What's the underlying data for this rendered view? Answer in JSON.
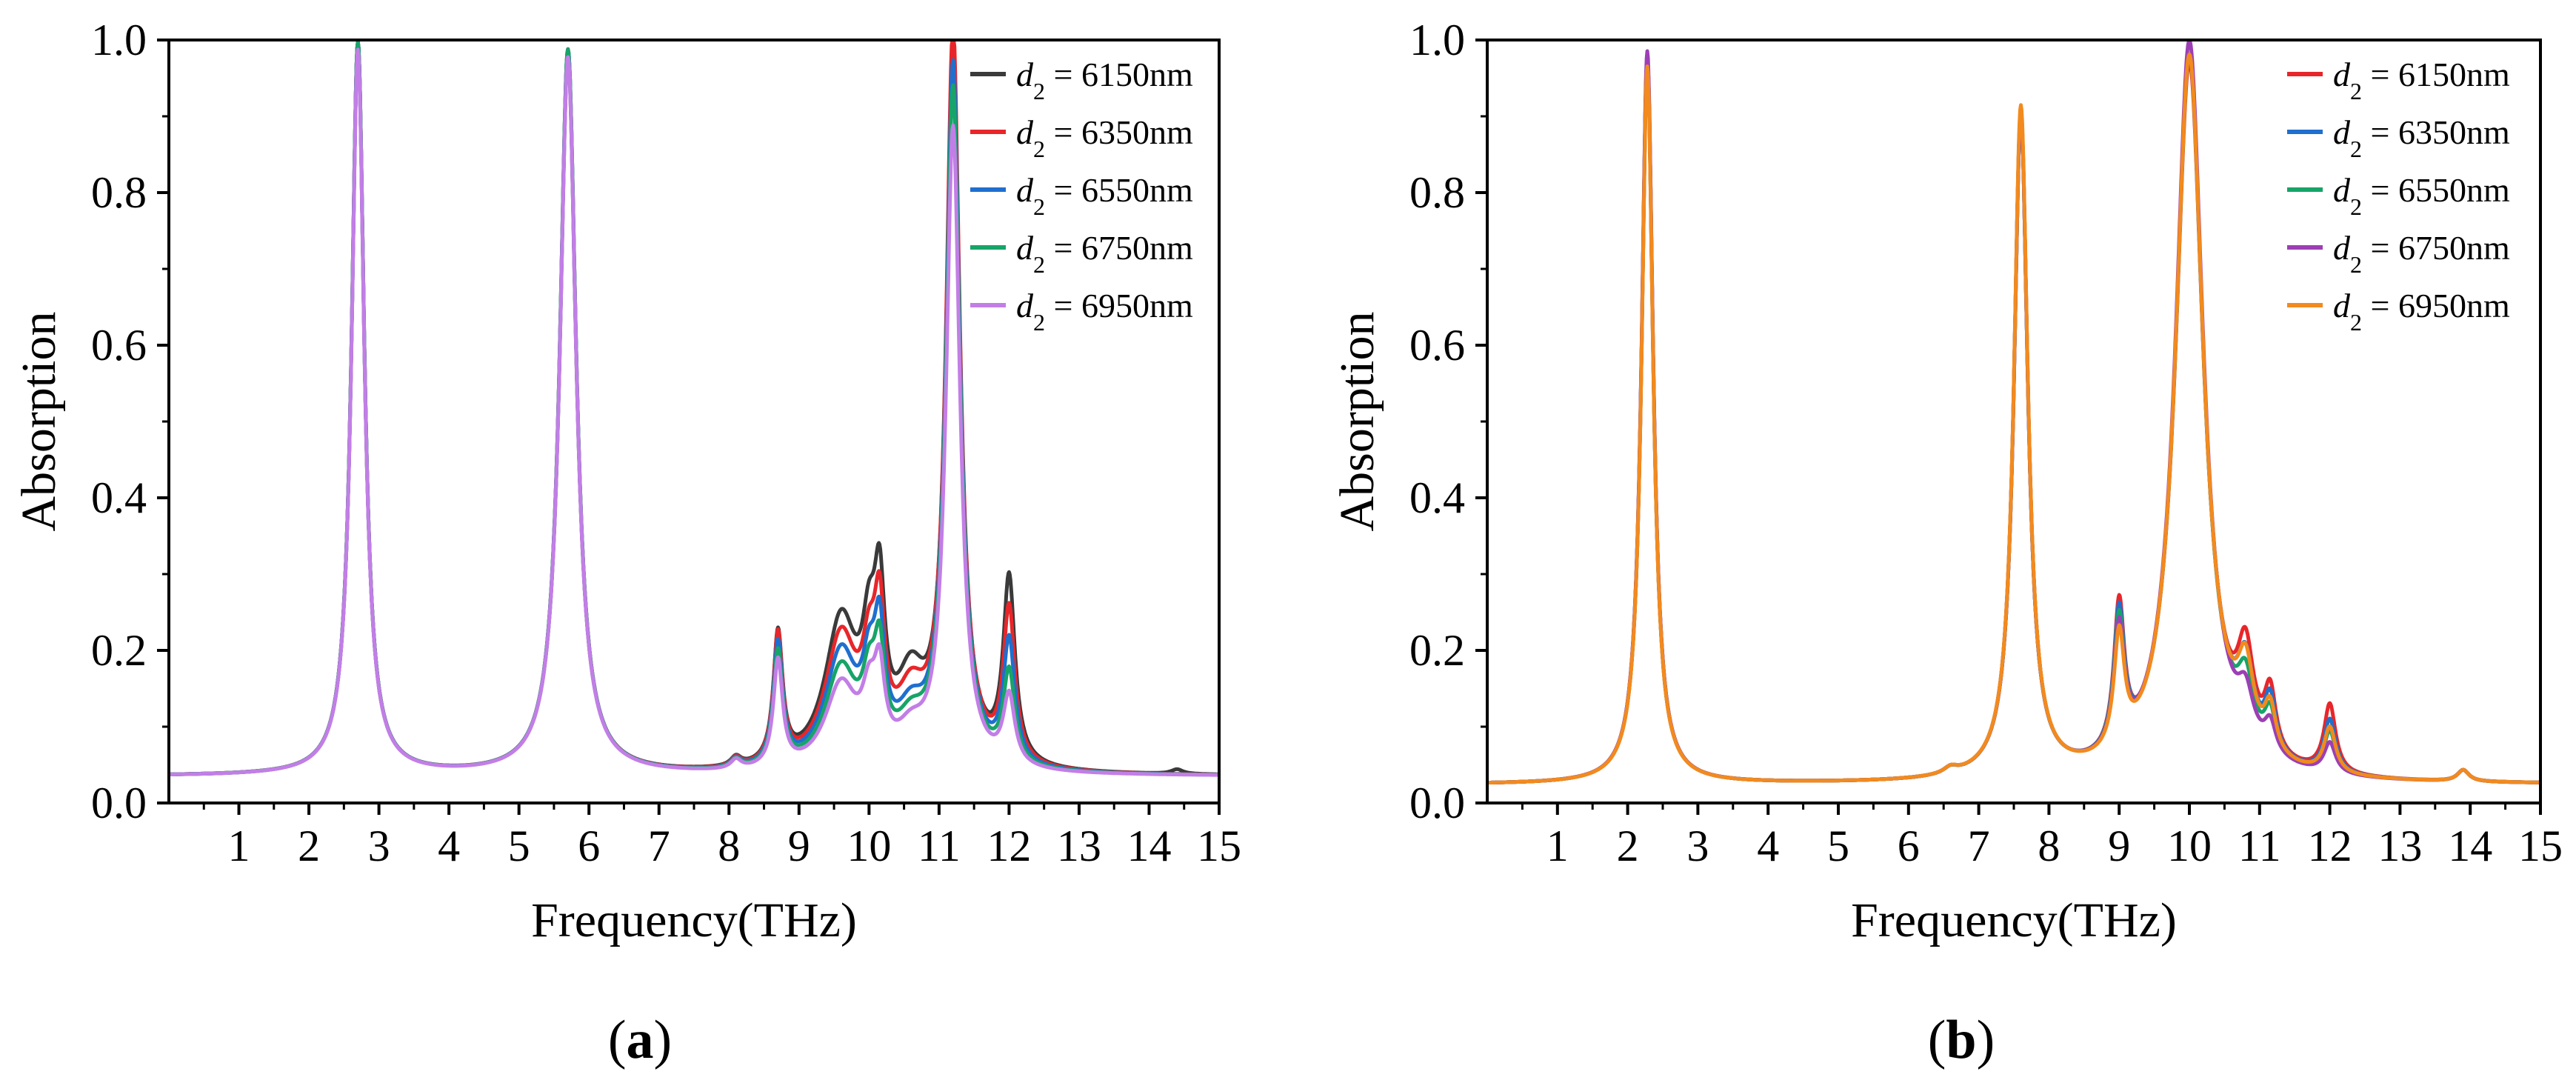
{
  "figure": {
    "panels": [
      "a",
      "b"
    ]
  },
  "colors": {
    "gray": "#3a3a3a",
    "red": "#e8262a",
    "blue": "#1f6fcf",
    "green": "#17a468",
    "violet": "#c27ee6",
    "purple": "#9c3fb4",
    "orange": "#f28a1e"
  },
  "chart_data": [
    {
      "id": "a",
      "type": "line",
      "panel_label": "a",
      "xlabel": "Frequency(THz)",
      "ylabel": "Absorption",
      "xlim": [
        0,
        15
      ],
      "ylim": [
        0,
        1.0
      ],
      "xticks": [
        1,
        2,
        3,
        4,
        5,
        6,
        7,
        8,
        9,
        10,
        11,
        12,
        13,
        14,
        15
      ],
      "xtick_labels": [
        "1",
        "2",
        "3",
        "4",
        "5",
        "6",
        "7",
        "8",
        "9",
        "10",
        "11",
        "12",
        "13",
        "14",
        "15"
      ],
      "yticks": [
        0.0,
        0.2,
        0.4,
        0.6,
        0.8,
        1.0
      ],
      "ytick_labels": [
        "0.0",
        "0.2",
        "0.4",
        "0.6",
        "0.8",
        "1.0"
      ],
      "legend_position": "top-right",
      "legend_symbol": "d",
      "legend_subscript": "2",
      "baseline": 0.035,
      "series": [
        {
          "name": "6150nm",
          "label": " = 6150nm",
          "color": "#3a3a3a",
          "peaks": [
            [
              2.7,
              0.96,
              0.11
            ],
            [
              5.7,
              0.94,
              0.14
            ],
            [
              8.1,
              0.012,
              0.09
            ],
            [
              8.7,
              0.17,
              0.08
            ],
            [
              9.6,
              0.19,
              0.28
            ],
            [
              10.0,
              0.12,
              0.12
            ],
            [
              10.15,
              0.18,
              0.09
            ],
            [
              10.6,
              0.1,
              0.25
            ],
            [
              11.2,
              0.93,
              0.12
            ],
            [
              12.0,
              0.24,
              0.1
            ],
            [
              14.4,
              0.006,
              0.1
            ]
          ]
        },
        {
          "name": "6350nm",
          "label": " = 6350nm",
          "color": "#e8262a",
          "peaks": [
            [
              2.7,
              0.96,
              0.11
            ],
            [
              5.7,
              0.95,
              0.14
            ],
            [
              8.1,
              0.012,
              0.09
            ],
            [
              8.7,
              0.17,
              0.08
            ],
            [
              9.6,
              0.17,
              0.28
            ],
            [
              10.0,
              0.1,
              0.12
            ],
            [
              10.15,
              0.16,
              0.09
            ],
            [
              10.6,
              0.08,
              0.25
            ],
            [
              11.2,
              0.96,
              0.12
            ],
            [
              12.0,
              0.2,
              0.1
            ]
          ]
        },
        {
          "name": "6550nm",
          "label": " = 6550nm",
          "color": "#1f6fcf",
          "peaks": [
            [
              2.7,
              0.96,
              0.11
            ],
            [
              5.7,
              0.95,
              0.14
            ],
            [
              8.1,
              0.012,
              0.09
            ],
            [
              8.7,
              0.16,
              0.08
            ],
            [
              9.6,
              0.15,
              0.28
            ],
            [
              10.0,
              0.09,
              0.12
            ],
            [
              10.15,
              0.14,
              0.09
            ],
            [
              10.6,
              0.06,
              0.25
            ],
            [
              11.2,
              0.92,
              0.12
            ],
            [
              12.0,
              0.16,
              0.1
            ]
          ]
        },
        {
          "name": "6750nm",
          "label": " = 6750nm",
          "color": "#17a468",
          "peaks": [
            [
              2.7,
              0.96,
              0.11
            ],
            [
              5.7,
              0.95,
              0.14
            ],
            [
              8.1,
              0.012,
              0.09
            ],
            [
              8.7,
              0.15,
              0.08
            ],
            [
              9.6,
              0.13,
              0.28
            ],
            [
              10.0,
              0.08,
              0.12
            ],
            [
              10.15,
              0.12,
              0.09
            ],
            [
              10.6,
              0.05,
              0.25
            ],
            [
              11.2,
              0.89,
              0.12
            ],
            [
              12.0,
              0.12,
              0.1
            ]
          ]
        },
        {
          "name": "6950nm",
          "label": " = 6950nm",
          "color": "#c27ee6",
          "peaks": [
            [
              2.7,
              0.95,
              0.11
            ],
            [
              5.7,
              0.94,
              0.14
            ],
            [
              8.1,
              0.012,
              0.09
            ],
            [
              8.7,
              0.14,
              0.08
            ],
            [
              9.6,
              0.11,
              0.28
            ],
            [
              10.0,
              0.07,
              0.12
            ],
            [
              10.15,
              0.1,
              0.09
            ],
            [
              10.6,
              0.04,
              0.25
            ],
            [
              11.2,
              0.84,
              0.12
            ],
            [
              12.0,
              0.09,
              0.1
            ]
          ]
        }
      ]
    },
    {
      "id": "b",
      "type": "line",
      "panel_label": "b",
      "xlabel": "Frequency(THz)",
      "ylabel": "Absorption",
      "xlim": [
        0,
        15
      ],
      "ylim": [
        0,
        1.0
      ],
      "xticks": [
        1,
        2,
        3,
        4,
        5,
        6,
        7,
        8,
        9,
        10,
        11,
        12,
        13,
        14,
        15
      ],
      "xtick_labels": [
        "1",
        "2",
        "3",
        "4",
        "5",
        "6",
        "7",
        "8",
        "9",
        "10",
        "11",
        "12",
        "13",
        "14",
        "15"
      ],
      "yticks": [
        0.0,
        0.2,
        0.4,
        0.6,
        0.8,
        1.0
      ],
      "ytick_labels": [
        "0.0",
        "0.2",
        "0.4",
        "0.6",
        "0.8",
        "1.0"
      ],
      "legend_position": "top-right",
      "legend_symbol": "d",
      "legend_subscript": "2",
      "baseline": 0.024,
      "series": [
        {
          "name": "6150nm",
          "label": " = 6150nm",
          "color": "#e8262a",
          "peaks": [
            [
              2.28,
              0.95,
              0.1
            ],
            [
              6.6,
              0.008,
              0.12
            ],
            [
              7.6,
              0.87,
              0.12
            ],
            [
              9.0,
              0.19,
              0.09
            ],
            [
              10.0,
              0.94,
              0.24
            ],
            [
              10.8,
              0.12,
              0.14
            ],
            [
              11.15,
              0.08,
              0.1
            ],
            [
              12.0,
              0.09,
              0.1
            ],
            [
              13.9,
              0.015,
              0.1
            ]
          ]
        },
        {
          "name": "6350nm",
          "label": " = 6350nm",
          "color": "#1f6fcf",
          "peaks": [
            [
              2.28,
              0.95,
              0.1
            ],
            [
              6.6,
              0.008,
              0.12
            ],
            [
              7.6,
              0.87,
              0.12
            ],
            [
              9.0,
              0.18,
              0.09
            ],
            [
              10.0,
              0.95,
              0.24
            ],
            [
              10.8,
              0.1,
              0.14
            ],
            [
              11.15,
              0.07,
              0.1
            ],
            [
              12.0,
              0.07,
              0.1
            ],
            [
              13.9,
              0.015,
              0.1
            ]
          ]
        },
        {
          "name": "6550nm",
          "label": " = 6550nm",
          "color": "#17a468",
          "peaks": [
            [
              2.28,
              0.95,
              0.1
            ],
            [
              6.6,
              0.008,
              0.12
            ],
            [
              7.6,
              0.87,
              0.12
            ],
            [
              9.0,
              0.17,
              0.09
            ],
            [
              10.0,
              0.95,
              0.24
            ],
            [
              10.8,
              0.08,
              0.14
            ],
            [
              11.15,
              0.055,
              0.1
            ],
            [
              12.0,
              0.055,
              0.1
            ],
            [
              13.9,
              0.015,
              0.1
            ]
          ]
        },
        {
          "name": "6750nm",
          "label": " = 6750nm",
          "color": "#9c3fb4",
          "peaks": [
            [
              2.28,
              0.96,
              0.1
            ],
            [
              6.6,
              0.008,
              0.12
            ],
            [
              7.6,
              0.87,
              0.12
            ],
            [
              9.0,
              0.16,
              0.09
            ],
            [
              10.0,
              0.97,
              0.24
            ],
            [
              10.8,
              0.06,
              0.14
            ],
            [
              11.15,
              0.04,
              0.1
            ],
            [
              12.0,
              0.04,
              0.1
            ],
            [
              13.9,
              0.015,
              0.1
            ]
          ]
        },
        {
          "name": "6950nm",
          "label": " = 6950nm",
          "color": "#f28a1e",
          "peaks": [
            [
              2.28,
              0.94,
              0.1
            ],
            [
              6.6,
              0.008,
              0.12
            ],
            [
              7.6,
              0.88,
              0.12
            ],
            [
              9.0,
              0.15,
              0.09
            ],
            [
              10.0,
              0.95,
              0.24
            ],
            [
              10.8,
              0.1,
              0.14
            ],
            [
              11.15,
              0.06,
              0.1
            ],
            [
              12.0,
              0.06,
              0.1
            ],
            [
              13.9,
              0.015,
              0.1
            ]
          ]
        }
      ]
    }
  ]
}
